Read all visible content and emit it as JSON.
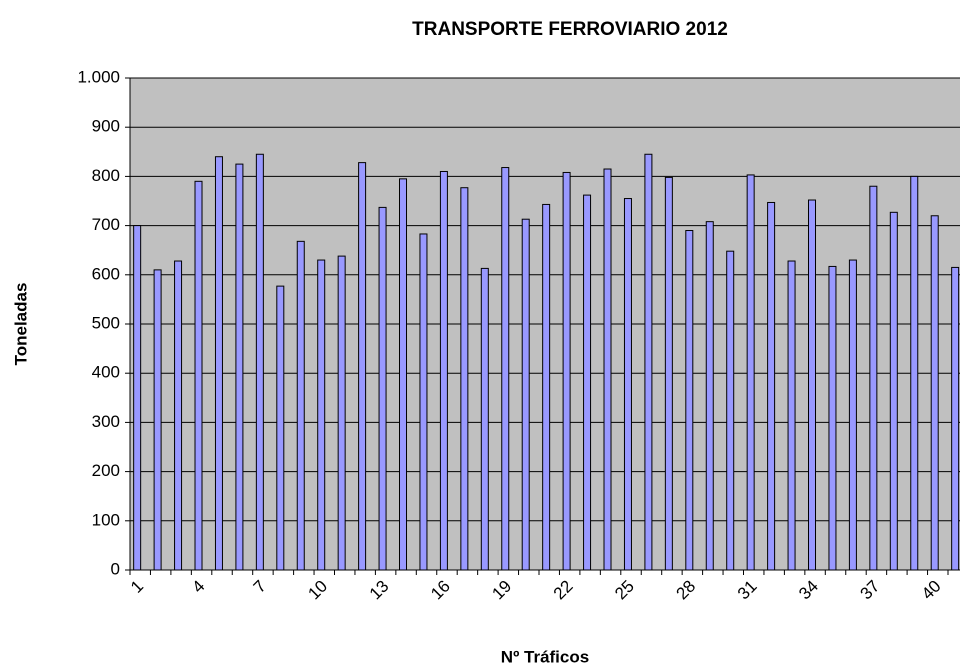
{
  "chart_data": {
    "type": "bar",
    "title": "TRANSPORTE FERROVIARIO 2012",
    "x_label": "Nº Tráficos",
    "y_label": "Toneladas",
    "categories": [
      "1",
      null,
      null,
      "4",
      null,
      null,
      "7",
      null,
      null,
      "10",
      null,
      null,
      "13",
      null,
      null,
      "16",
      null,
      null,
      "19",
      null,
      null,
      "22",
      null,
      null,
      "25",
      null,
      null,
      "28",
      null,
      null,
      "31",
      null,
      null,
      "34",
      null,
      null,
      "37",
      null,
      null,
      "40",
      null
    ],
    "values": [
      700,
      610,
      628,
      790,
      840,
      825,
      845,
      577,
      668,
      630,
      638,
      828,
      737,
      795,
      683,
      810,
      777,
      613,
      818,
      713,
      743,
      808,
      762,
      815,
      755,
      845,
      798,
      690,
      708,
      648,
      803,
      747,
      628,
      752,
      617,
      630,
      780,
      727,
      800,
      720,
      615
    ],
    "color": "#9999ff",
    "background": "#c0c0c0",
    "ylim": [
      0,
      1000
    ],
    "yticks": [
      0,
      100,
      200,
      300,
      400,
      500,
      600,
      700,
      800,
      900,
      {
        "value": 1000,
        "label": "1.000"
      }
    ],
    "grid": true
  }
}
